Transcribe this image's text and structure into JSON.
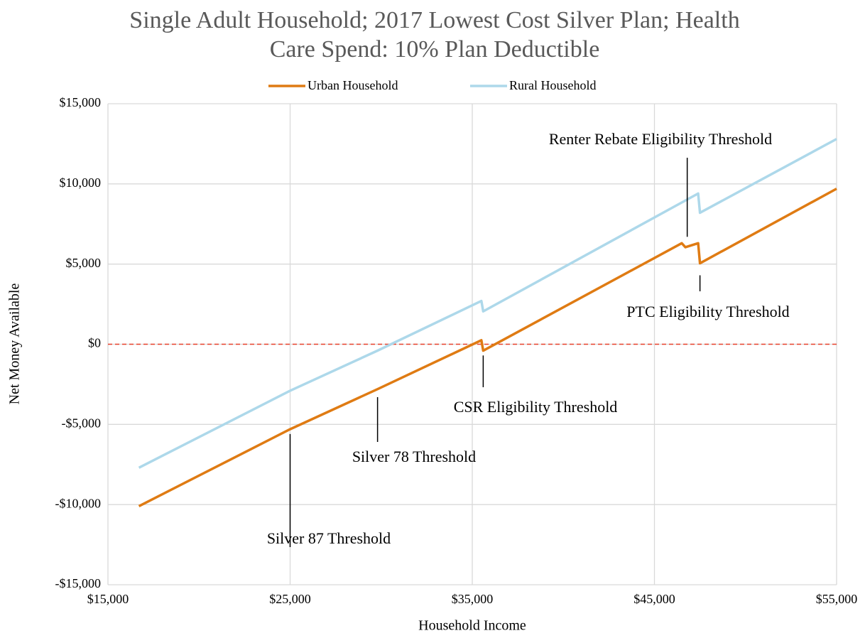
{
  "chart_data": {
    "type": "line",
    "title": [
      "Single Adult Household; 2017 Lowest Cost Silver Plan; Health",
      "Care Spend: 10% Plan Deductible"
    ],
    "x_label": "Household Income",
    "y_label": "Net Money Available",
    "xlim": [
      15000,
      55000
    ],
    "ylim": [
      -15000,
      15000
    ],
    "xticks": [
      {
        "value": 15000,
        "label": "$15,000"
      },
      {
        "value": 25000,
        "label": "$25,000"
      },
      {
        "value": 35000,
        "label": "$35,000"
      },
      {
        "value": 45000,
        "label": "$45,000"
      },
      {
        "value": 55000,
        "label": "$55,000"
      }
    ],
    "yticks": [
      {
        "value": -15000,
        "label": "-$15,000"
      },
      {
        "value": -10000,
        "label": "-$10,000"
      },
      {
        "value": -5000,
        "label": "-$5,000"
      },
      {
        "value": 0,
        "label": "$0"
      },
      {
        "value": 5000,
        "label": "$5,000"
      },
      {
        "value": 10000,
        "label": "$10,000"
      },
      {
        "value": 15000,
        "label": "$15,000"
      }
    ],
    "grid": true,
    "legend": "top",
    "reference_line": {
      "value": 0,
      "color": "#e8412c"
    },
    "series": [
      {
        "name": "Urban Household",
        "color": "#df7b13",
        "x": [
          16700,
          25000,
          29800,
          35500,
          35600,
          46500,
          46700,
          47400,
          47500,
          55000
        ],
        "values": [
          -10100,
          -5300,
          -2800,
          250,
          -400,
          6300,
          6050,
          6300,
          5050,
          9700
        ]
      },
      {
        "name": "Rural Household",
        "color": "#add8ea",
        "x": [
          16700,
          25000,
          29800,
          35500,
          35600,
          47400,
          47500,
          55000
        ],
        "values": [
          -7700,
          -2900,
          -400,
          2700,
          2050,
          9400,
          8200,
          12800
        ]
      }
    ],
    "annotations": [
      {
        "text": "Silver 87 Threshold",
        "x": 25000,
        "y": -5600
      },
      {
        "text": "Silver 78 Threshold",
        "x": 29800,
        "y": -3300
      },
      {
        "text": "CSR Eligibility Threshold",
        "x": 35600,
        "y": -700
      },
      {
        "text": "PTC Eligibility Threshold",
        "x": 47500,
        "y": 4300
      },
      {
        "text": "Renter Rebate Eligibility Threshold",
        "x": 46800,
        "y": 6700
      }
    ]
  }
}
